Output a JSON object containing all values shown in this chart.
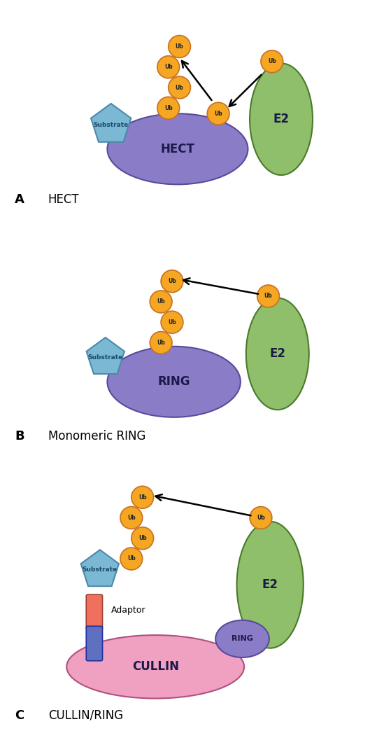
{
  "bg_color": "#ffffff",
  "ub_color": "#F5A623",
  "ub_edge": "#C87020",
  "substrate_color": "#7BB8D4",
  "substrate_edge": "#4A8AAA",
  "hect_color": "#8B7CC8",
  "hect_edge": "#5A4A9A",
  "e2_color": "#8FBF6A",
  "e2_edge": "#4A7A2A",
  "ring_small_color": "#8B7CC8",
  "ring_small_edge": "#5A4A9A",
  "cullin_color": "#F0A0C0",
  "cullin_edge": "#B05080",
  "adaptor_red": "#F07060",
  "adaptor_red_edge": "#A04030",
  "adaptor_blue": "#6070C0",
  "adaptor_blue_edge": "#2030A0",
  "label_A": "A",
  "label_B": "B",
  "label_C": "C",
  "title_A": "HECT",
  "title_B": "Monomeric RING",
  "title_C": "CULLIN/RING",
  "label_HECT": "HECT",
  "label_RING": "RING",
  "label_E2": "E2",
  "label_CULLIN": "CULLIN",
  "label_RING_small": "RING",
  "label_Substrate": "Substrate",
  "label_Adaptor": "Adaptor",
  "label_Ub": "Ub",
  "text_color_dark": "#1A1A4A",
  "substrate_text": "#1A4A6A"
}
